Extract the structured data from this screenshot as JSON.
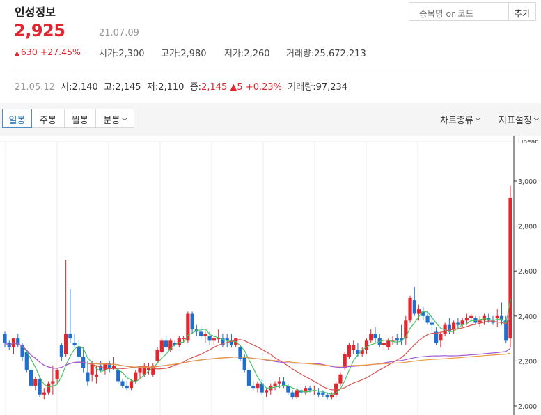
{
  "stock": {
    "name": "인성정보",
    "price": "2,925",
    "date": "21.07.09",
    "change": "630",
    "change_pct": "+27.45%",
    "stats": [
      {
        "label": "시가",
        "value": "2,300"
      },
      {
        "label": "고가",
        "value": "2,980"
      },
      {
        "label": "저가",
        "value": "2,260"
      },
      {
        "label": "거래량",
        "value": "25,672,213"
      }
    ]
  },
  "search": {
    "placeholder": "종목명 or 코드",
    "button": "추가"
  },
  "day_info": {
    "date": "21.05.12",
    "open_label": "시",
    "open": "2,140",
    "high_label": "고",
    "high": "2,145",
    "low_label": "저",
    "low": "2,110",
    "close_label": "종",
    "close": "2,145",
    "change": "5",
    "change_pct": "+0.23%",
    "volume_label": "거래량",
    "volume": "97,234"
  },
  "tabs": [
    "일봉",
    "주봉",
    "월봉",
    "분봉"
  ],
  "menus": {
    "chart_type": "차트종류",
    "indicator": "지표설정"
  },
  "colors": {
    "up": "#e0262e",
    "down": "#1e6fd0",
    "ma5": "#43c462",
    "ma20": "#d9534f",
    "ma60": "#a15bd6",
    "ma120": "#e89b3e"
  },
  "chart_data": {
    "type": "candlestick",
    "scale_label": "Linear",
    "y_ticks": [
      "2,000",
      "2,200",
      "2,400",
      "2,600",
      "2,800",
      "3,000"
    ],
    "ylim": [
      2000,
      3000
    ],
    "candles": [
      [
        2320,
        2330,
        2260,
        2280
      ],
      [
        2280,
        2290,
        2250,
        2260
      ],
      [
        2260,
        2300,
        2230,
        2300
      ],
      [
        2300,
        2320,
        2260,
        2270
      ],
      [
        2270,
        2280,
        2200,
        2220
      ],
      [
        2240,
        2250,
        2150,
        2160
      ],
      [
        2160,
        2170,
        2080,
        2090
      ],
      [
        2090,
        2130,
        2070,
        2120
      ],
      [
        2120,
        2130,
        2040,
        2050
      ],
      [
        2050,
        2080,
        2030,
        2060
      ],
      [
        2060,
        2110,
        2050,
        2100
      ],
      [
        2100,
        2180,
        2050,
        2110
      ],
      [
        2120,
        2170,
        2100,
        2160
      ],
      [
        2270,
        2280,
        2200,
        2220
      ],
      [
        2230,
        2650,
        2220,
        2320
      ],
      [
        2320,
        2520,
        2280,
        2300
      ],
      [
        2280,
        2320,
        2260,
        2270
      ],
      [
        2260,
        2290,
        2200,
        2220
      ],
      [
        2220,
        2260,
        2150,
        2170
      ],
      [
        2150,
        2200,
        2090,
        2110
      ],
      [
        2140,
        2200,
        2110,
        2190
      ],
      [
        2130,
        2180,
        2100,
        2140
      ],
      [
        2180,
        2200,
        2150,
        2160
      ],
      [
        2160,
        2190,
        2140,
        2190
      ],
      [
        2190,
        2200,
        2150,
        2170
      ],
      [
        2170,
        2220,
        2160,
        2180
      ],
      [
        2160,
        2170,
        2100,
        2110
      ],
      [
        2110,
        2120,
        2080,
        2090
      ],
      [
        2090,
        2110,
        2070,
        2080
      ],
      [
        2080,
        2120,
        2070,
        2110
      ],
      [
        2110,
        2160,
        2100,
        2150
      ],
      [
        2150,
        2180,
        2120,
        2170
      ],
      [
        2140,
        2190,
        2130,
        2180
      ],
      [
        2160,
        2190,
        2140,
        2170
      ],
      [
        2140,
        2190,
        2130,
        2180
      ],
      [
        2200,
        2260,
        2190,
        2250
      ],
      [
        2240,
        2300,
        2230,
        2290
      ],
      [
        2290,
        2310,
        2240,
        2260
      ],
      [
        2250,
        2300,
        2240,
        2290
      ],
      [
        2280,
        2290,
        2260,
        2270
      ],
      [
        2270,
        2310,
        2260,
        2300
      ],
      [
        2300,
        2310,
        2280,
        2300
      ],
      [
        2290,
        2420,
        2280,
        2410
      ],
      [
        2410,
        2420,
        2320,
        2340
      ],
      [
        2340,
        2360,
        2310,
        2330
      ],
      [
        2330,
        2350,
        2290,
        2310
      ],
      [
        2310,
        2330,
        2280,
        2320
      ],
      [
        2310,
        2330,
        2270,
        2290
      ],
      [
        2290,
        2310,
        2270,
        2300
      ],
      [
        2300,
        2340,
        2280,
        2300
      ],
      [
        2300,
        2320,
        2260,
        2270
      ],
      [
        2300,
        2320,
        2260,
        2290
      ],
      [
        2290,
        2320,
        2260,
        2270
      ],
      [
        2270,
        2290,
        2260,
        2300
      ],
      [
        2260,
        2270,
        2200,
        2210
      ],
      [
        2220,
        2230,
        2150,
        2160
      ],
      [
        2160,
        2170,
        2080,
        2090
      ],
      [
        2090,
        2110,
        2070,
        2080
      ],
      [
        2080,
        2110,
        2060,
        2100
      ],
      [
        2100,
        2120,
        2050,
        2060
      ],
      [
        2060,
        2080,
        2040,
        2070
      ],
      [
        2070,
        2100,
        2050,
        2090
      ],
      [
        2090,
        2110,
        2070,
        2100
      ],
      [
        2100,
        2130,
        2080,
        2110
      ],
      [
        2110,
        2130,
        2080,
        2090
      ],
      [
        2090,
        2100,
        2050,
        2060
      ],
      [
        2060,
        2070,
        2030,
        2040
      ],
      [
        2040,
        2080,
        2030,
        2070
      ],
      [
        2070,
        2080,
        2050,
        2060
      ],
      [
        2060,
        2090,
        2050,
        2080
      ],
      [
        2080,
        2090,
        2060,
        2070
      ],
      [
        2070,
        2090,
        2050,
        2070
      ],
      [
        2060,
        2080,
        2040,
        2050
      ],
      [
        2060,
        2070,
        2040,
        2050
      ],
      [
        2050,
        2060,
        2030,
        2040
      ],
      [
        2040,
        2060,
        2030,
        2050
      ],
      [
        2050,
        2110,
        2040,
        2100
      ],
      [
        2100,
        2150,
        2090,
        2140
      ],
      [
        2170,
        2240,
        2160,
        2230
      ],
      [
        2220,
        2280,
        2210,
        2270
      ],
      [
        2250,
        2290,
        2230,
        2270
      ],
      [
        2250,
        2280,
        2220,
        2230
      ],
      [
        2230,
        2260,
        2220,
        2250
      ],
      [
        2250,
        2300,
        2230,
        2290
      ],
      [
        2290,
        2340,
        2280,
        2320
      ],
      [
        2320,
        2350,
        2280,
        2300
      ],
      [
        2300,
        2320,
        2260,
        2270
      ],
      [
        2270,
        2300,
        2250,
        2280
      ],
      [
        2260,
        2300,
        2250,
        2290
      ],
      [
        2290,
        2310,
        2270,
        2290
      ],
      [
        2300,
        2320,
        2270,
        2290
      ],
      [
        2300,
        2360,
        2270,
        2290
      ],
      [
        2300,
        2400,
        2270,
        2380
      ],
      [
        2380,
        2490,
        2370,
        2480
      ],
      [
        2470,
        2530,
        2400,
        2410
      ],
      [
        2410,
        2450,
        2380,
        2430
      ],
      [
        2420,
        2440,
        2380,
        2400
      ],
      [
        2400,
        2420,
        2360,
        2370
      ],
      [
        2370,
        2390,
        2330,
        2360
      ],
      [
        2330,
        2350,
        2270,
        2280
      ],
      [
        2290,
        2330,
        2260,
        2320
      ],
      [
        2320,
        2370,
        2310,
        2360
      ],
      [
        2360,
        2390,
        2320,
        2330
      ],
      [
        2340,
        2380,
        2320,
        2370
      ],
      [
        2370,
        2390,
        2340,
        2360
      ],
      [
        2360,
        2390,
        2350,
        2380
      ],
      [
        2380,
        2410,
        2360,
        2390
      ],
      [
        2390,
        2410,
        2370,
        2400
      ],
      [
        2390,
        2400,
        2360,
        2370
      ],
      [
        2370,
        2400,
        2350,
        2380
      ],
      [
        2380,
        2410,
        2360,
        2400
      ],
      [
        2390,
        2410,
        2370,
        2380
      ],
      [
        2380,
        2400,
        2360,
        2370
      ],
      [
        2390,
        2430,
        2350,
        2400
      ],
      [
        2400,
        2460,
        2360,
        2380
      ],
      [
        2380,
        2400,
        2280,
        2290
      ],
      [
        2300,
        2980,
        2260,
        2925
      ]
    ]
  }
}
